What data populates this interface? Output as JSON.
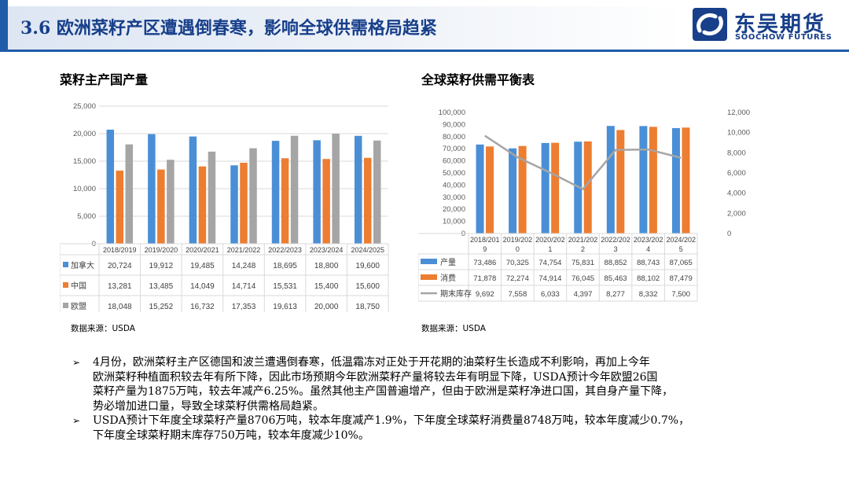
{
  "header": {
    "title": "3.6 欧洲菜籽产区遭遇倒春寒，影响全球供需格局趋紧",
    "logo_cn": "东吴期货",
    "logo_en": "SOOCHOW FUTURES"
  },
  "colors": {
    "blue": "#4a8fd6",
    "orange": "#ed7d31",
    "gray": "#a5a5a5",
    "brand": "#173f8a"
  },
  "left_panel": {
    "subtitle": "菜籽主产国产量",
    "source": "数据来源：USDA"
  },
  "right_panel": {
    "subtitle": "全球菜籽供需平衡表",
    "source": "数据来源：USDA"
  },
  "chart_data": [
    {
      "type": "bar",
      "title": "菜籽主产国产量",
      "categories": [
        "2018/2019",
        "2019/2020",
        "2020/2021",
        "2021/2022",
        "2022/2023",
        "2023/2024",
        "2024/2025"
      ],
      "series": [
        {
          "name": "加拿大",
          "values": [
            20724,
            19912,
            19485,
            14248,
            18695,
            18800,
            19600
          ],
          "labels": [
            "20,724",
            "19,912",
            "19,485",
            "14,248",
            "18,695",
            "18,800",
            "19,600"
          ],
          "color": "#4a8fd6"
        },
        {
          "name": "中国",
          "values": [
            13281,
            13485,
            14049,
            14714,
            15531,
            15400,
            15600
          ],
          "labels": [
            "13,281",
            "13,485",
            "14,049",
            "14,714",
            "15,531",
            "15,400",
            "15,600"
          ],
          "color": "#ed7d31"
        },
        {
          "name": "欧盟",
          "values": [
            18048,
            15252,
            16732,
            17353,
            19613,
            20000,
            18750
          ],
          "labels": [
            "18,048",
            "15,252",
            "16,732",
            "17,353",
            "19,613",
            "20,000",
            "18,750"
          ],
          "color": "#a5a5a5"
        }
      ],
      "ylim": [
        0,
        25000
      ],
      "yticks": [
        "0",
        "5,000",
        "10,000",
        "15,000",
        "20,000",
        "25,000"
      ],
      "grid": true,
      "legend": "data-table-bottom"
    },
    {
      "type": "bar",
      "title": "全球菜籽供需平衡表",
      "categories": [
        "2018/2019",
        "2019/2020",
        "2020/2021",
        "2021/2022",
        "2022/2023",
        "2023/2024",
        "2024/2025"
      ],
      "category_lines": [
        [
          "2018/201",
          "9"
        ],
        [
          "2019/202",
          "0"
        ],
        [
          "2020/202",
          "1"
        ],
        [
          "2021/202",
          "2"
        ],
        [
          "2022/202",
          "3"
        ],
        [
          "2023/202",
          "4"
        ],
        [
          "2024/202",
          "5"
        ]
      ],
      "series": [
        {
          "name": "产量",
          "type": "bar",
          "axis": "left",
          "values": [
            73486,
            70325,
            74754,
            75831,
            88852,
            88743,
            87065
          ],
          "labels": [
            "73,486",
            "70,325",
            "74,754",
            "75,831",
            "88,852",
            "88,743",
            "87,065"
          ],
          "color": "#4a8fd6"
        },
        {
          "name": "消费",
          "type": "bar",
          "axis": "left",
          "values": [
            71878,
            72274,
            74914,
            76045,
            85463,
            88102,
            87479
          ],
          "labels": [
            "71,878",
            "72,274",
            "74,914",
            "76,045",
            "85,463",
            "88,102",
            "87,479"
          ],
          "color": "#ed7d31"
        },
        {
          "name": "期末库存",
          "type": "line",
          "axis": "right",
          "values": [
            9692,
            7558,
            6033,
            4397,
            8277,
            8332,
            7500
          ],
          "labels": [
            "9,692",
            "7,558",
            "6,033",
            "4,397",
            "8,277",
            "8,332",
            "7,500"
          ],
          "color": "#a5a5a5"
        }
      ],
      "ylim": [
        0,
        100000
      ],
      "y2lim": [
        0,
        12000
      ],
      "yticks": [
        "0",
        "10,000",
        "20,000",
        "30,000",
        "40,000",
        "50,000",
        "60,000",
        "70,000",
        "80,000",
        "90,000",
        "100,000"
      ],
      "y2ticks": [
        "0",
        "2,000",
        "4,000",
        "6,000",
        "8,000",
        "10,000",
        "12,000"
      ],
      "grid": false,
      "legend": "data-table-bottom"
    }
  ],
  "bullets": [
    {
      "lines": [
        "4月份，欧洲菜籽主产区德国和波兰遭遇倒春寒，低温霜冻对正处于开花期的油菜籽生长造成不利影响，再加上今年",
        "欧洲菜籽种植面积较去年有所下降，因此市场预期今年欧洲菜籽产量将较去年有明显下降，USDA预计今年欧盟26国",
        "菜籽产量为1875万吨，较去年减产6.25%。虽然其他主产国普遍增产，但由于欧洲是菜籽净进口国，其自身产量下降，",
        "势必增加进口量，导致全球菜籽供需格局趋紧。"
      ]
    },
    {
      "lines": [
        "USDA预计下年度全球菜籽产量8706万吨，较本年度减产1.9%，下年度全球菜籽消费量8748万吨，较本年度减少0.7%，",
        "下年度全球菜籽期末库存750万吨，较本年度减少10%。"
      ]
    }
  ],
  "bullet_marker": "➢"
}
